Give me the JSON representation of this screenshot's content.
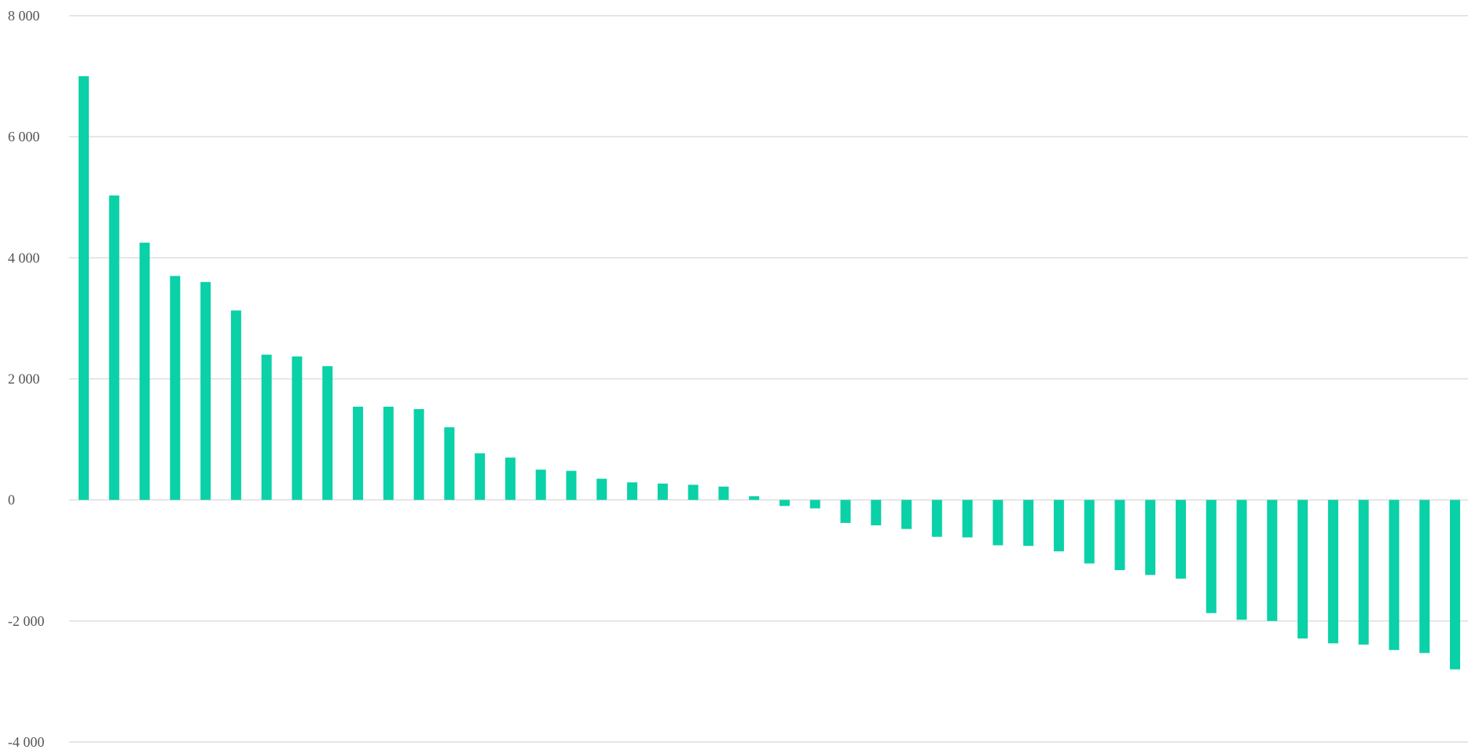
{
  "chart_data": {
    "type": "bar",
    "title": "",
    "xlabel": "",
    "ylabel": "",
    "ylim": [
      -4000,
      8000
    ],
    "grid": true,
    "legend": "none",
    "y_ticks": [
      {
        "value": 8000,
        "label": "8 000"
      },
      {
        "value": 6000,
        "label": "6 000"
      },
      {
        "value": 4000,
        "label": "4 000"
      },
      {
        "value": 2000,
        "label": "2 000"
      },
      {
        "value": 0,
        "label": "0"
      },
      {
        "value": -2000,
        "label": "-2 000"
      },
      {
        "value": -4000,
        "label": "-4 000"
      }
    ],
    "series": [
      {
        "color": "#0ad1a7",
        "values": [
          7000,
          5030,
          4250,
          3700,
          3600,
          3130,
          2400,
          2370,
          2210,
          1540,
          1540,
          1500,
          1200,
          770,
          700,
          500,
          480,
          350,
          290,
          270,
          250,
          220,
          60,
          -100,
          -140,
          -380,
          -420,
          -480,
          -610,
          -620,
          -750,
          -760,
          -850,
          -1050,
          -1160,
          -1240,
          -1300,
          -1870,
          -1980,
          -2000,
          -2290,
          -2370,
          -2390,
          -2480,
          -2530,
          -2800
        ]
      }
    ]
  }
}
